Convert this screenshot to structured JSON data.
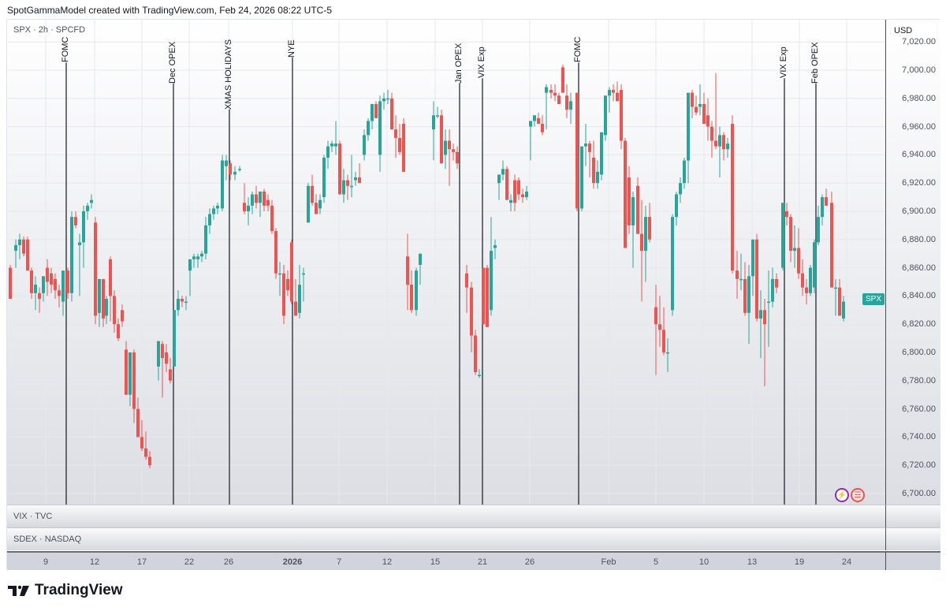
{
  "caption": "SpotGammaModel created with TradingView.com, Feb 24, 2026 08:22 UTC-5",
  "legend": "SPX · 2h · SPCFD",
  "price_axis": {
    "currency": "USD",
    "ticks": [
      "7,020.00",
      "7,000.00",
      "6,980.00",
      "6,960.00",
      "6,940.00",
      "6,920.00",
      "6,900.00",
      "6,880.00",
      "6,860.00",
      "6,840.00",
      "6,820.00",
      "6,800.00",
      "6,780.00",
      "6,760.00",
      "6,740.00",
      "6,720.00",
      "6,700.00"
    ]
  },
  "spx_badge": "SPX",
  "sub_panes": [
    {
      "label": "VIX · TVC"
    },
    {
      "label": "SDEX · NASDAQ"
    }
  ],
  "time_axis": {
    "ticks": [
      "9",
      "12",
      "17",
      "22",
      "26",
      "2026",
      "7",
      "12",
      "15",
      "21",
      "26",
      "Feb",
      "5",
      "10",
      "13",
      "19",
      "24"
    ]
  },
  "events": [
    "FOMC",
    "Dec OPEX",
    "XMAS HOLIDAYS",
    "NYE",
    "Jan OPEX",
    "VIX Exp",
    "FOMC",
    "VIX Exp",
    "Feb OPEX"
  ],
  "logo_text": "TradingView",
  "colors": {
    "up": "#26a69a",
    "down": "#ef5350",
    "event_line": "#131722"
  },
  "chart_data": {
    "type": "candlestick",
    "title": "SPX · 2h · SPCFD",
    "xlabel": "",
    "ylabel": "USD",
    "ylim": [
      6695,
      7025
    ],
    "grid": true,
    "x_tick_labels": [
      "9",
      "12",
      "17",
      "22",
      "26",
      "2026",
      "7",
      "12",
      "15",
      "21",
      "26",
      "Feb",
      "5",
      "10",
      "13",
      "19",
      "24"
    ],
    "event_markers": [
      {
        "label": "FOMC",
        "x": 83
      },
      {
        "label": "Dec OPEX",
        "x": 219
      },
      {
        "label": "XMAS HOLIDAYS",
        "x": 290
      },
      {
        "label": "NYE",
        "x": 370
      },
      {
        "label": "Jan OPEX",
        "x": 582
      },
      {
        "label": "VIX Exp",
        "x": 611
      },
      {
        "label": "FOMC",
        "x": 733
      },
      {
        "label": "VIX Exp",
        "x": 994
      },
      {
        "label": "Feb OPEX",
        "x": 1034
      }
    ],
    "candles": [
      [
        12,
        6860,
        6862,
        6838,
        6838
      ],
      [
        19,
        6872,
        6880,
        6860,
        6876
      ],
      [
        24,
        6876,
        6884,
        6866,
        6880
      ],
      [
        29,
        6880,
        6882,
        6868,
        6870
      ],
      [
        34,
        6880,
        6882,
        6858,
        6858
      ],
      [
        39,
        6858,
        6860,
        6838,
        6842
      ],
      [
        44,
        6842,
        6854,
        6830,
        6848
      ],
      [
        49,
        6842,
        6846,
        6828,
        6838
      ],
      [
        54,
        6842,
        6854,
        6836,
        6854
      ],
      [
        59,
        6860,
        6866,
        6840,
        6850
      ],
      [
        64,
        6856,
        6860,
        6842,
        6848
      ],
      [
        69,
        6852,
        6856,
        6838,
        6844
      ],
      [
        74,
        6844,
        6848,
        6832,
        6840
      ],
      [
        79,
        6836,
        6856,
        6826,
        6858
      ],
      [
        85,
        6858,
        6860,
        6838,
        6842
      ],
      [
        90,
        6842,
        6900,
        6836,
        6896
      ],
      [
        95,
        6896,
        6900,
        6888,
        6890
      ],
      [
        100,
        6876,
        6884,
        6840,
        6878
      ],
      [
        105,
        6878,
        6904,
        6860,
        6900
      ],
      [
        110,
        6900,
        6906,
        6894,
        6904
      ],
      [
        115,
        6906,
        6912,
        6902,
        6908
      ],
      [
        120,
        6892,
        6896,
        6820,
        6826
      ],
      [
        125,
        6828,
        6850,
        6818,
        6852
      ],
      [
        130,
        6852,
        6852,
        6818,
        6824
      ],
      [
        134,
        6826,
        6840,
        6820,
        6838
      ],
      [
        139,
        6866,
        6868,
        6822,
        6840
      ],
      [
        144,
        6840,
        6844,
        6814,
        6820
      ],
      [
        149,
        6820,
        6824,
        6808,
        6810
      ],
      [
        154,
        6830,
        6834,
        6818,
        6822
      ],
      [
        159,
        6802,
        6808,
        6770,
        6770
      ],
      [
        164,
        6770,
        6800,
        6762,
        6800
      ],
      [
        169,
        6800,
        6802,
        6750,
        6760
      ],
      [
        174,
        6760,
        6768,
        6750,
        6740
      ],
      [
        179,
        6740,
        6752,
        6730,
        6732
      ],
      [
        184,
        6732,
        6744,
        6724,
        6726
      ],
      [
        189,
        6726,
        6730,
        6718,
        6720
      ],
      [
        200,
        6790,
        6808,
        6780,
        6808
      ],
      [
        205,
        6806,
        6808,
        6768,
        6796
      ],
      [
        210,
        6800,
        6806,
        6786,
        6792
      ],
      [
        215,
        6788,
        6796,
        6778,
        6780
      ],
      [
        220,
        6790,
        6830,
        6790,
        6830
      ],
      [
        225,
        6830,
        6844,
        6826,
        6838
      ],
      [
        230,
        6838,
        6840,
        6832,
        6836
      ],
      [
        235,
        6836,
        6840,
        6830,
        6836
      ],
      [
        240,
        6858,
        6864,
        6840,
        6866
      ],
      [
        245,
        6866,
        6870,
        6860,
        6868
      ],
      [
        250,
        6866,
        6870,
        6860,
        6868
      ],
      [
        255,
        6868,
        6872,
        6864,
        6870
      ],
      [
        260,
        6870,
        6896,
        6866,
        6890
      ],
      [
        265,
        6890,
        6902,
        6884,
        6898
      ],
      [
        270,
        6898,
        6904,
        6894,
        6902
      ],
      [
        275,
        6902,
        6906,
        6898,
        6904
      ],
      [
        281,
        6902,
        6940,
        6900,
        6936
      ],
      [
        286,
        6932,
        6940,
        6922,
        6936
      ],
      [
        291,
        6934,
        6936,
        6922,
        6926
      ],
      [
        297,
        6926,
        6932,
        6922,
        6928
      ],
      [
        303,
        6930,
        6932,
        6928,
        6930
      ],
      [
        309,
        6906,
        6920,
        6898,
        6900
      ],
      [
        314,
        6900,
        6910,
        6890,
        6904
      ],
      [
        319,
        6904,
        6914,
        6898,
        6912
      ],
      [
        324,
        6912,
        6918,
        6902,
        6906
      ],
      [
        329,
        6906,
        6912,
        6896,
        6914
      ],
      [
        334,
        6914,
        6916,
        6900,
        6904
      ],
      [
        339,
        6908,
        6912,
        6900,
        6904
      ],
      [
        344,
        6904,
        6908,
        6884,
        6886
      ],
      [
        349,
        6886,
        6888,
        6852,
        6856
      ],
      [
        354,
        6856,
        6864,
        6840,
        6856
      ],
      [
        359,
        6856,
        6862,
        6820,
        6826
      ],
      [
        364,
        6852,
        6858,
        6840,
        6844
      ],
      [
        369,
        6878,
        6880,
        6834,
        6836
      ],
      [
        374,
        6836,
        6852,
        6826,
        6826
      ],
      [
        379,
        6828,
        6862,
        6824,
        6848
      ],
      [
        384,
        6856,
        6860,
        6836,
        6856
      ],
      [
        390,
        6892,
        6920,
        6892,
        6918
      ],
      [
        395,
        6918,
        6926,
        6904,
        6906
      ],
      [
        400,
        6906,
        6912,
        6898,
        6898
      ],
      [
        405,
        6902,
        6912,
        6898,
        6908
      ],
      [
        410,
        6910,
        6940,
        6906,
        6938
      ],
      [
        415,
        6938,
        6950,
        6930,
        6946
      ],
      [
        420,
        6946,
        6950,
        6942,
        6948
      ],
      [
        425,
        6946,
        6964,
        6940,
        6948
      ],
      [
        430,
        6948,
        6950,
        6916,
        6912
      ],
      [
        435,
        6912,
        6930,
        6906,
        6922
      ],
      [
        440,
        6922,
        6926,
        6908,
        6918
      ],
      [
        445,
        6918,
        6940,
        6910,
        6918
      ],
      [
        450,
        6922,
        6928,
        6918,
        6924
      ],
      [
        455,
        6924,
        6934,
        6920,
        6920
      ],
      [
        461,
        6940,
        6958,
        6936,
        6954
      ],
      [
        466,
        6954,
        6966,
        6950,
        6964
      ],
      [
        471,
        6964,
        6976,
        6958,
        6976
      ],
      [
        476,
        6976,
        6978,
        6966,
        6966
      ],
      [
        481,
        6940,
        6982,
        6928,
        6978
      ],
      [
        486,
        6978,
        6984,
        6972,
        6980
      ],
      [
        491,
        6980,
        6986,
        6976,
        6980
      ],
      [
        496,
        6980,
        6984,
        6958,
        6958
      ],
      [
        501,
        6958,
        6968,
        6938,
        6952
      ],
      [
        506,
        6952,
        6962,
        6940,
        6942
      ],
      [
        511,
        6962,
        6966,
        6928,
        6928
      ],
      [
        516,
        6868,
        6884,
        6830,
        6848
      ],
      [
        521,
        6848,
        6858,
        6828,
        6830
      ],
      [
        527,
        6830,
        6860,
        6826,
        6858
      ],
      [
        532,
        6862,
        6870,
        6848,
        6870
      ],
      [
        549,
        6958,
        6978,
        6936,
        6968
      ],
      [
        554,
        6968,
        6974,
        6966,
        6968
      ],
      [
        559,
        6968,
        6972,
        6934,
        6934
      ],
      [
        564,
        6940,
        6958,
        6930,
        6950
      ],
      [
        569,
        6950,
        6958,
        6918,
        6944
      ],
      [
        574,
        6944,
        6948,
        6936,
        6942
      ],
      [
        579,
        6942,
        6946,
        6930,
        6934
      ],
      [
        591,
        6856,
        6862,
        6828,
        6846
      ],
      [
        597,
        6846,
        6850,
        6800,
        6812
      ],
      [
        602,
        6812,
        6816,
        6784,
        6786
      ],
      [
        607,
        6784,
        6788,
        6782,
        6784
      ],
      [
        612,
        6860,
        6860,
        6820,
        6820
      ],
      [
        617,
        6860,
        6862,
        6818,
        6818
      ],
      [
        622,
        6830,
        6896,
        6826,
        6872
      ],
      [
        627,
        6874,
        6880,
        6866,
        6876
      ],
      [
        632,
        6920,
        6926,
        6908,
        6926
      ],
      [
        637,
        6926,
        6936,
        6922,
        6930
      ],
      [
        642,
        6930,
        6932,
        6912,
        6908
      ],
      [
        647,
        6906,
        6912,
        6900,
        6908
      ],
      [
        652,
        6922,
        6926,
        6900,
        6906
      ],
      [
        657,
        6922,
        6924,
        6908,
        6912
      ],
      [
        662,
        6912,
        6916,
        6906,
        6910
      ],
      [
        667,
        6910,
        6918,
        6908,
        6914
      ],
      [
        672,
        6960,
        6962,
        6936,
        6964
      ],
      [
        677,
        6964,
        6968,
        6960,
        6968
      ],
      [
        682,
        6966,
        6970,
        6962,
        6962
      ],
      [
        687,
        6962,
        6968,
        6954,
        6956
      ],
      [
        692,
        6984,
        6990,
        6958,
        6988
      ],
      [
        698,
        6986,
        6990,
        6980,
        6984
      ],
      [
        703,
        6984,
        6990,
        6978,
        6982
      ],
      [
        708,
        6982,
        6984,
        6978,
        6976
      ],
      [
        713,
        7002,
        7004,
        6984,
        6984
      ],
      [
        718,
        6982,
        6990,
        6966,
        6972
      ],
      [
        723,
        6972,
        6984,
        6962,
        6978
      ],
      [
        731,
        6984,
        6984,
        6900,
        6902
      ],
      [
        737,
        6902,
        6944,
        6900,
        6946
      ],
      [
        742,
        6946,
        6962,
        6932,
        6948
      ],
      [
        747,
        6948,
        6950,
        6924,
        6942
      ],
      [
        752,
        6938,
        6950,
        6916,
        6920
      ],
      [
        757,
        6920,
        6936,
        6916,
        6928
      ],
      [
        762,
        6926,
        6954,
        6922,
        6956
      ],
      [
        767,
        6954,
        6978,
        6950,
        6982
      ],
      [
        772,
        6982,
        6988,
        6970,
        6986
      ],
      [
        777,
        6986,
        6990,
        6978,
        6984
      ],
      [
        782,
        6984,
        6992,
        6978,
        6978
      ],
      [
        787,
        6986,
        6990,
        6944,
        6950
      ],
      [
        792,
        6950,
        6952,
        6880,
        6874
      ],
      [
        797,
        6924,
        6932,
        6884,
        6890
      ],
      [
        802,
        6890,
        6914,
        6860,
        6910
      ],
      [
        808,
        6918,
        6924,
        6902,
        6884
      ],
      [
        813,
        6884,
        6908,
        6836,
        6872
      ],
      [
        818,
        6872,
        6904,
        6850,
        6896
      ],
      [
        823,
        6896,
        6906,
        6878,
        6880
      ],
      [
        831,
        6832,
        6848,
        6784,
        6820
      ],
      [
        836,
        6820,
        6840,
        6804,
        6816
      ],
      [
        841,
        6816,
        6832,
        6798,
        6800
      ],
      [
        846,
        6800,
        6810,
        6786,
        6800
      ],
      [
        852,
        6830,
        6898,
        6826,
        6896
      ],
      [
        857,
        6896,
        6914,
        6890,
        6912
      ],
      [
        862,
        6912,
        6924,
        6906,
        6920
      ],
      [
        867,
        6920,
        6938,
        6916,
        6936
      ],
      [
        872,
        6936,
        6978,
        6920,
        6984
      ],
      [
        877,
        6984,
        6986,
        6966,
        6974
      ],
      [
        882,
        6974,
        6982,
        6968,
        6970
      ],
      [
        887,
        6974,
        6990,
        6968,
        6976
      ],
      [
        892,
        6976,
        6984,
        6964,
        6962
      ],
      [
        897,
        6968,
        6980,
        6950,
        6960
      ],
      [
        902,
        6960,
        6964,
        6938,
        6950
      ],
      [
        907,
        6950,
        6998,
        6944,
        6946
      ],
      [
        912,
        6946,
        6960,
        6924,
        6954
      ],
      [
        917,
        6954,
        6956,
        6936,
        6944
      ],
      [
        922,
        6944,
        6952,
        6938,
        6948
      ],
      [
        928,
        6962,
        6968,
        6856,
        6858
      ],
      [
        934,
        6858,
        6872,
        6838,
        6852
      ],
      [
        939,
        6852,
        6870,
        6844,
        6852
      ],
      [
        944,
        6852,
        6864,
        6826,
        6828
      ],
      [
        949,
        6828,
        6862,
        6806,
        6854
      ],
      [
        954,
        6854,
        6880,
        6840,
        6880
      ],
      [
        959,
        6880,
        6884,
        6822,
        6824
      ],
      [
        964,
        6824,
        6844,
        6796,
        6830
      ],
      [
        969,
        6830,
        6838,
        6776,
        6820
      ],
      [
        974,
        6836,
        6858,
        6804,
        6836
      ],
      [
        979,
        6836,
        6860,
        6832,
        6852
      ],
      [
        984,
        6852,
        6856,
        6842,
        6846
      ],
      [
        992,
        6860,
        6902,
        6858,
        6906
      ],
      [
        997,
        6900,
        6906,
        6890,
        6896
      ],
      [
        1002,
        6896,
        6898,
        6864,
        6872
      ],
      [
        1007,
        6872,
        6890,
        6860,
        6874
      ],
      [
        1012,
        6874,
        6888,
        6852,
        6856
      ],
      [
        1017,
        6856,
        6866,
        6840,
        6846
      ],
      [
        1022,
        6846,
        6852,
        6834,
        6842
      ],
      [
        1027,
        6842,
        6862,
        6840,
        6860
      ],
      [
        1032,
        6846,
        6880,
        6842,
        6878
      ],
      [
        1037,
        6878,
        6904,
        6876,
        6896
      ],
      [
        1042,
        6896,
        6912,
        6890,
        6910
      ],
      [
        1047,
        6910,
        6916,
        6904,
        6904
      ],
      [
        1054,
        6906,
        6914,
        6846,
        6846
      ],
      [
        1059,
        6846,
        6852,
        6826,
        6846
      ],
      [
        1064,
        6846,
        6852,
        6826,
        6826
      ],
      [
        1069,
        6824,
        6840,
        6822,
        6836
      ]
    ]
  }
}
